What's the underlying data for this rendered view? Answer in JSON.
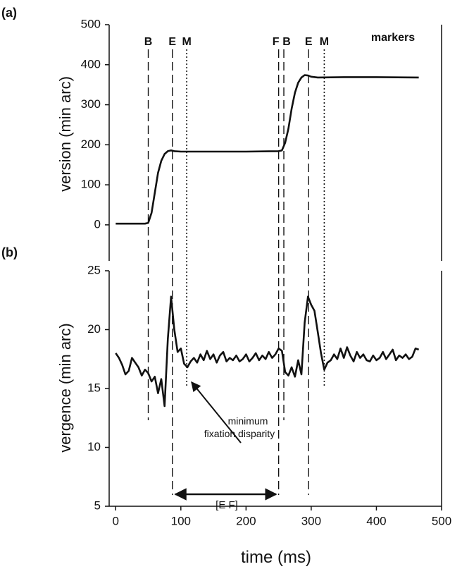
{
  "chart_data": [
    {
      "type": "line",
      "panel_label": "(a)",
      "y_label": "version (min arc)",
      "xlim": [
        -10,
        500
      ],
      "ylim": [
        -90,
        500
      ],
      "yticks": [
        0,
        100,
        200,
        300,
        400,
        500
      ],
      "series": [
        {
          "color": "#111111",
          "x": [
            0,
            45,
            50,
            55,
            60,
            65,
            70,
            75,
            80,
            85,
            90,
            100,
            150,
            200,
            250,
            255,
            260,
            265,
            270,
            275,
            280,
            285,
            290,
            295,
            300,
            310,
            350,
            400,
            465
          ],
          "values": [
            3,
            3,
            5,
            30,
            80,
            130,
            160,
            177,
            184,
            186,
            184,
            183,
            183,
            183,
            184,
            186,
            205,
            240,
            290,
            330,
            355,
            368,
            374,
            373,
            370,
            368,
            369,
            369,
            368
          ]
        }
      ],
      "markers_title": "markers",
      "markers": {
        "labels": [
          "B",
          "E",
          "M",
          "F",
          "B",
          "E",
          "M"
        ],
        "x": [
          50,
          87,
          109,
          250,
          258,
          296,
          320
        ],
        "styles": [
          "dashed",
          "dashed",
          "dotted",
          "dashed",
          "dashed",
          "dashed",
          "dotted"
        ]
      }
    },
    {
      "type": "line",
      "panel_label": "(b)",
      "y_label": "vergence (min arc)",
      "x_label": "time (ms)",
      "xlim": [
        -10,
        500
      ],
      "xticks": [
        0,
        100,
        200,
        300,
        400,
        500
      ],
      "ylim": [
        5,
        25
      ],
      "yticks": [
        5,
        10,
        15,
        20,
        25
      ],
      "series": [
        {
          "color": "#111111",
          "x": [
            0,
            5,
            10,
            15,
            20,
            25,
            30,
            35,
            40,
            45,
            50,
            55,
            60,
            65,
            70,
            75,
            80,
            85,
            90,
            95,
            100,
            105,
            110,
            115,
            120,
            125,
            130,
            135,
            140,
            145,
            150,
            155,
            160,
            165,
            170,
            175,
            180,
            185,
            190,
            195,
            200,
            205,
            210,
            215,
            220,
            225,
            230,
            235,
            240,
            245,
            250,
            255,
            260,
            265,
            270,
            275,
            280,
            285,
            290,
            295,
            300,
            305,
            310,
            315,
            320,
            325,
            330,
            335,
            340,
            345,
            350,
            355,
            360,
            365,
            370,
            375,
            380,
            385,
            390,
            395,
            400,
            405,
            410,
            415,
            420,
            425,
            430,
            435,
            440,
            445,
            450,
            455,
            460,
            465
          ],
          "values": [
            18.0,
            17.6,
            17.0,
            16.2,
            16.5,
            17.6,
            17.2,
            16.8,
            16.1,
            16.6,
            16.3,
            15.6,
            16.0,
            14.6,
            15.8,
            13.5,
            19.2,
            22.8,
            20.0,
            18.1,
            18.4,
            17.1,
            16.8,
            17.3,
            17.6,
            17.2,
            17.9,
            17.4,
            18.2,
            17.5,
            17.9,
            17.2,
            17.8,
            18.1,
            17.3,
            17.6,
            17.4,
            17.8,
            17.3,
            17.5,
            17.9,
            17.3,
            17.6,
            18.0,
            17.4,
            17.8,
            17.5,
            18.1,
            17.6,
            17.9,
            18.4,
            18.2,
            16.4,
            16.1,
            16.8,
            16.0,
            17.4,
            16.2,
            20.6,
            22.8,
            22.1,
            21.6,
            19.8,
            18.0,
            16.6,
            17.2,
            17.4,
            17.9,
            17.5,
            18.4,
            17.6,
            18.5,
            17.8,
            17.3,
            18.1,
            17.6,
            17.9,
            17.4,
            17.3,
            17.8,
            17.4,
            17.6,
            18.1,
            17.5,
            17.9,
            18.3,
            17.4,
            17.8,
            17.6,
            17.9,
            17.5,
            17.7,
            18.4,
            18.3
          ]
        }
      ],
      "annotation": [
        "minimum",
        "fixation disparity"
      ],
      "bracket_label": "[E F]"
    }
  ]
}
